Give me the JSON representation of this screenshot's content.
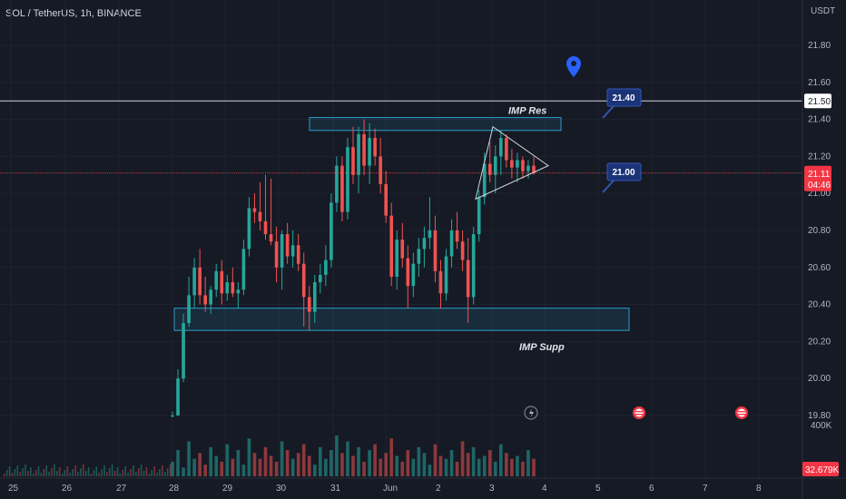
{
  "header": {
    "symbol": "SOL / TetherUS, 1h, BINANCE",
    "currency": "USDT"
  },
  "colors": {
    "background": "#161a25",
    "up": "#26a69a",
    "down": "#ef5350",
    "zone_border": "#2a9fc9",
    "callout_fill": "#1b3478",
    "last_price_bg": "#f23645",
    "level_line": "#d1d4dc",
    "grid": "#1f2330"
  },
  "chart_data": {
    "type": "candlestick",
    "symbol": "SOL / TetherUS",
    "interval": "1h",
    "exchange": "BINANCE",
    "y_ticks": [
      "21.80",
      "21.60",
      "21.40",
      "21.20",
      "21.00",
      "20.80",
      "20.60",
      "20.40",
      "20.20",
      "20.00",
      "19.80"
    ],
    "ylim": [
      19.78,
      21.95
    ],
    "x_ticks": [
      "25",
      "26",
      "27",
      "28",
      "29",
      "30",
      "31",
      "Jun",
      "2",
      "3",
      "4",
      "5",
      "6",
      "7",
      "8"
    ],
    "last_price": "21.11",
    "countdown": "04:46",
    "horizontal_level": "21.50",
    "volume_top_label": "400K",
    "volume_last_label": "32.679K",
    "candles": [
      [
        19.8,
        19.82,
        19.79,
        19.8
      ],
      [
        19.8,
        20.05,
        19.8,
        20.0
      ],
      [
        20.0,
        20.35,
        19.98,
        20.3
      ],
      [
        20.3,
        20.55,
        20.28,
        20.45
      ],
      [
        20.45,
        20.65,
        20.38,
        20.6
      ],
      [
        20.6,
        20.7,
        20.4,
        20.45
      ],
      [
        20.45,
        20.55,
        20.36,
        20.4
      ],
      [
        20.4,
        20.5,
        20.35,
        20.48
      ],
      [
        20.48,
        20.62,
        20.44,
        20.58
      ],
      [
        20.58,
        20.64,
        20.4,
        20.46
      ],
      [
        20.46,
        20.56,
        20.42,
        20.52
      ],
      [
        20.52,
        20.6,
        20.44,
        20.46
      ],
      [
        20.46,
        20.52,
        20.38,
        20.48
      ],
      [
        20.48,
        20.75,
        20.45,
        20.7
      ],
      [
        20.7,
        20.98,
        20.66,
        20.92
      ],
      [
        20.92,
        21.0,
        20.84,
        20.9
      ],
      [
        20.9,
        21.06,
        20.8,
        20.85
      ],
      [
        20.85,
        21.1,
        20.75,
        20.78
      ],
      [
        20.78,
        21.08,
        20.72,
        20.74
      ],
      [
        20.74,
        20.82,
        20.52,
        20.6
      ],
      [
        20.6,
        20.8,
        20.48,
        20.78
      ],
      [
        20.78,
        20.84,
        20.62,
        20.66
      ],
      [
        20.66,
        20.8,
        20.6,
        20.72
      ],
      [
        20.72,
        20.78,
        20.58,
        20.62
      ],
      [
        20.62,
        20.68,
        20.28,
        20.44
      ],
      [
        20.44,
        20.5,
        20.26,
        20.36
      ],
      [
        20.36,
        20.56,
        20.3,
        20.52
      ],
      [
        20.52,
        20.62,
        20.46,
        20.56
      ],
      [
        20.56,
        20.72,
        20.5,
        20.64
      ],
      [
        20.64,
        21.0,
        20.6,
        20.95
      ],
      [
        20.95,
        21.2,
        20.9,
        21.15
      ],
      [
        21.15,
        21.2,
        20.85,
        20.9
      ],
      [
        20.9,
        21.3,
        20.86,
        21.25
      ],
      [
        21.25,
        21.36,
        21.05,
        21.1
      ],
      [
        21.1,
        21.36,
        21.0,
        21.32
      ],
      [
        21.32,
        21.4,
        21.1,
        21.15
      ],
      [
        21.15,
        21.38,
        21.05,
        21.3
      ],
      [
        21.3,
        21.35,
        21.15,
        21.2
      ],
      [
        21.2,
        21.3,
        21.0,
        21.05
      ],
      [
        21.05,
        21.12,
        20.84,
        20.88
      ],
      [
        20.88,
        20.95,
        20.5,
        20.55
      ],
      [
        20.55,
        20.8,
        20.48,
        20.75
      ],
      [
        20.75,
        20.84,
        20.6,
        20.65
      ],
      [
        20.65,
        20.72,
        20.38,
        20.5
      ],
      [
        20.5,
        20.68,
        20.44,
        20.62
      ],
      [
        20.62,
        20.76,
        20.55,
        20.7
      ],
      [
        20.7,
        20.82,
        20.6,
        20.76
      ],
      [
        20.76,
        20.98,
        20.7,
        20.8
      ],
      [
        20.8,
        20.88,
        20.52,
        20.58
      ],
      [
        20.58,
        20.64,
        20.38,
        20.46
      ],
      [
        20.46,
        20.7,
        20.42,
        20.66
      ],
      [
        20.66,
        20.86,
        20.6,
        20.8
      ],
      [
        20.8,
        20.9,
        20.7,
        20.74
      ],
      [
        20.74,
        20.8,
        20.58,
        20.64
      ],
      [
        20.64,
        20.76,
        20.3,
        20.44
      ],
      [
        20.44,
        20.82,
        20.4,
        20.78
      ],
      [
        20.78,
        21.02,
        20.74,
        20.98
      ],
      [
        20.98,
        21.22,
        20.94,
        21.16
      ],
      [
        21.16,
        21.28,
        21.06,
        21.1
      ],
      [
        21.1,
        21.26,
        21.0,
        21.2
      ],
      [
        21.2,
        21.34,
        21.1,
        21.3
      ],
      [
        21.3,
        21.32,
        21.14,
        21.18
      ],
      [
        21.18,
        21.24,
        21.08,
        21.14
      ],
      [
        21.14,
        21.22,
        21.06,
        21.18
      ],
      [
        21.18,
        21.2,
        21.08,
        21.12
      ],
      [
        21.12,
        21.18,
        21.08,
        21.15
      ],
      [
        21.15,
        21.2,
        21.1,
        21.11
      ]
    ],
    "volume": [
      5,
      9,
      3,
      12,
      6,
      8,
      4,
      10,
      7,
      5,
      11,
      6,
      9,
      4,
      13,
      8,
      6,
      10,
      7,
      5,
      12,
      9,
      6,
      8,
      11,
      7,
      4,
      10,
      6,
      9,
      14,
      8,
      12,
      7,
      10,
      5,
      9,
      11,
      6,
      8,
      13,
      7,
      5,
      9,
      6,
      10,
      8,
      4,
      11,
      7,
      6,
      9,
      5,
      12,
      8,
      10,
      6,
      7,
      9,
      5,
      11,
      8,
      6,
      7,
      5,
      9,
      6
    ],
    "annotations": [
      {
        "label": "IMP Res",
        "type": "resistance-zone",
        "y_range": [
          21.36,
          21.4
        ]
      },
      {
        "label": "IMP Supp",
        "type": "support-zone",
        "y_range": [
          20.26,
          20.38
        ]
      },
      {
        "label": "21.40",
        "type": "price-callout"
      },
      {
        "label": "21.00",
        "type": "price-callout"
      },
      {
        "type": "symmetrical-triangle",
        "apex_price": 21.15
      }
    ]
  }
}
